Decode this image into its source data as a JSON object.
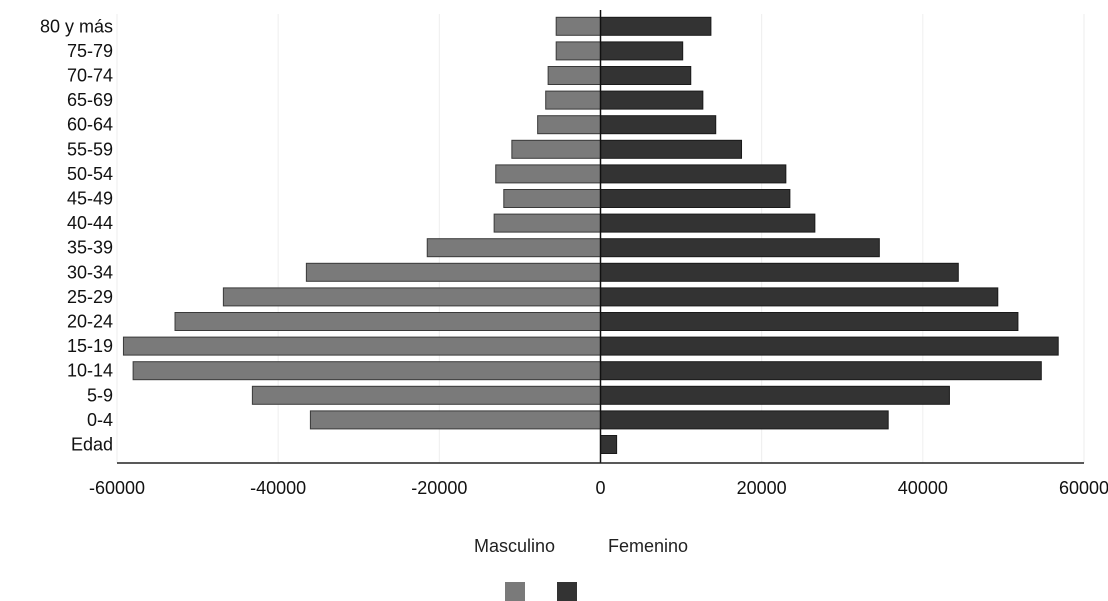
{
  "chart_data": {
    "type": "bar",
    "orientation": "horizontal",
    "stacked_diverging": true,
    "categories": [
      "80 y más",
      "75-79",
      "70-74",
      "65-69",
      "60-64",
      "55-59",
      "50-54",
      "45-49",
      "40-44",
      "35-39",
      "30-34",
      "25-29",
      "20-24",
      "15-19",
      "10-14",
      "5-9",
      "0-4",
      "Edad"
    ],
    "series": [
      {
        "name": "Masculino",
        "color": "#7a7a7a",
        "values": [
          -5500,
          -5500,
          -6500,
          -6800,
          -7800,
          -11000,
          -13000,
          -12000,
          -13200,
          -21500,
          -36500,
          -46800,
          -52800,
          -59200,
          -58000,
          -43200,
          -36000,
          0
        ]
      },
      {
        "name": "Femenino",
        "color": "#333333",
        "values": [
          13700,
          10200,
          11200,
          12700,
          14300,
          17500,
          23000,
          23500,
          26600,
          34600,
          44400,
          49300,
          51800,
          56800,
          54700,
          43300,
          35700,
          2000
        ]
      }
    ],
    "xlim": [
      -60000,
      60000
    ],
    "xticks": [
      "-60000",
      "-40000",
      "-20000",
      "0",
      "20000",
      "40000",
      "60000"
    ],
    "legend": {
      "placement": "bottom-center",
      "labels": [
        "Masculino",
        "Femenino"
      ]
    },
    "title": "",
    "xlabel": "",
    "ylabel": ""
  }
}
